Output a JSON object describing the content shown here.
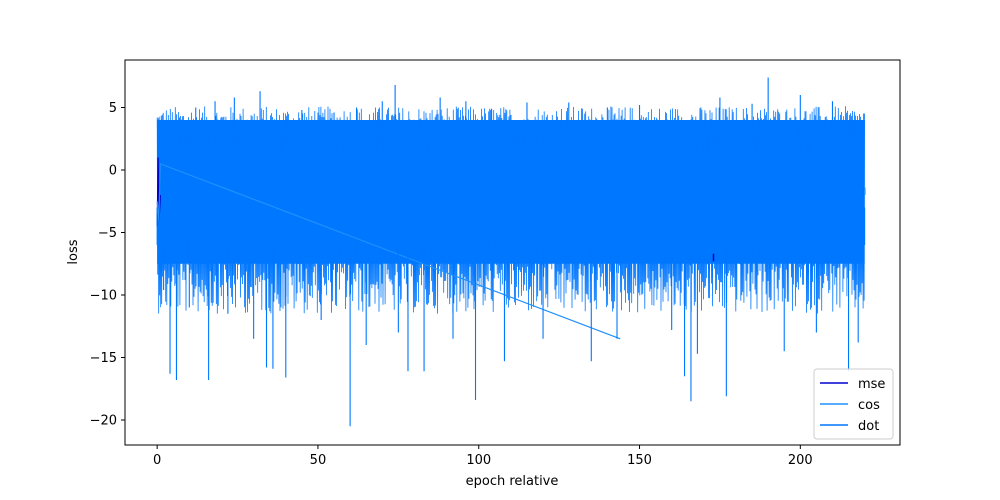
{
  "chart_data": {
    "type": "line",
    "title": "",
    "xlabel": "epoch relative",
    "ylabel": "loss",
    "xlim": [
      -10,
      231
    ],
    "ylim": [
      -22,
      8.8
    ],
    "x_ticks": [
      0,
      50,
      100,
      150,
      200
    ],
    "y_ticks": [
      -20,
      -15,
      -10,
      -5,
      0,
      5
    ],
    "grid": false,
    "legend_position": "lower-right",
    "x_range": [
      0,
      220
    ],
    "series": [
      {
        "name": "mse",
        "color": "#0000cd",
        "note_range": "dense noisy signal, mostly hidden beneath dot series",
        "points": [
          [
            0,
            -4.5
          ],
          [
            0.3,
            1.0
          ],
          [
            0.6,
            -4.0
          ],
          [
            1.0,
            -2.0
          ],
          [
            173,
            -7.3
          ],
          [
            220,
            -2.0
          ]
        ]
      },
      {
        "name": "cos",
        "color": "#1e90ff",
        "points": [
          [
            0,
            -2.5
          ],
          [
            0.5,
            -4.0
          ],
          [
            1.0,
            0.5
          ],
          [
            144,
            -13.5
          ],
          [
            220,
            -2.0
          ]
        ]
      },
      {
        "name": "dot",
        "color": "#0077ff",
        "points": [
          [
            0,
            -3.0
          ],
          [
            1,
            1.0
          ],
          [
            2,
            -9.6
          ],
          [
            3,
            3.5
          ],
          [
            4,
            -16.3
          ],
          [
            5,
            3.8
          ],
          [
            6,
            -16.8
          ],
          [
            7,
            4.2
          ],
          [
            10,
            -11.0
          ],
          [
            12,
            5.0
          ],
          [
            16,
            -16.8
          ],
          [
            18,
            5.5
          ],
          [
            22,
            -11.5
          ],
          [
            24,
            5.8
          ],
          [
            30,
            -13.5
          ],
          [
            32,
            6.3
          ],
          [
            34,
            -15.8
          ],
          [
            36,
            -15.9
          ],
          [
            40,
            -16.6
          ],
          [
            45,
            4.8
          ],
          [
            51,
            -12.0
          ],
          [
            55,
            4.6
          ],
          [
            60,
            -20.5
          ],
          [
            62,
            5.0
          ],
          [
            65,
            -14.0
          ],
          [
            70,
            5.5
          ],
          [
            74,
            6.8
          ],
          [
            75,
            -13.0
          ],
          [
            78,
            -16.1
          ],
          [
            83,
            -16.1
          ],
          [
            88,
            5.8
          ],
          [
            92,
            -13.5
          ],
          [
            96,
            5.5
          ],
          [
            99,
            -18.4
          ],
          [
            104,
            4.9
          ],
          [
            108,
            -15.3
          ],
          [
            110,
            4.4
          ],
          [
            115,
            5.4
          ],
          [
            120,
            -13.5
          ],
          [
            128,
            5.4
          ],
          [
            135,
            -15.3
          ],
          [
            140,
            5.0
          ],
          [
            143,
            -13.5
          ],
          [
            150,
            5.2
          ],
          [
            160,
            -12.8
          ],
          [
            164,
            -16.5
          ],
          [
            166,
            -18.5
          ],
          [
            168,
            -14.7
          ],
          [
            172,
            -7.2
          ],
          [
            175,
            5.8
          ],
          [
            177,
            -18.1
          ],
          [
            185,
            5.3
          ],
          [
            190,
            7.4
          ],
          [
            195,
            -14.5
          ],
          [
            200,
            6.0
          ],
          [
            205,
            -13.0
          ],
          [
            210,
            5.5
          ],
          [
            215,
            -16.1
          ],
          [
            218,
            -13.8
          ],
          [
            220,
            -3.0
          ]
        ]
      }
    ],
    "band": {
      "note": "dense oscillation envelope of dot series",
      "upper": 4.0,
      "lower": -7.5
    }
  }
}
